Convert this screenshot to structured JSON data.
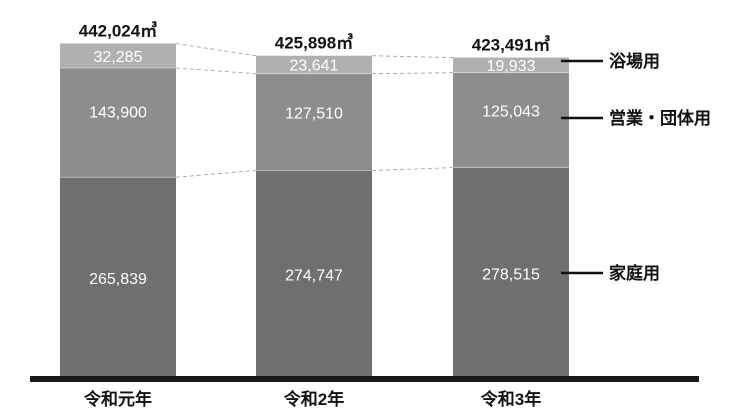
{
  "chart_data": {
    "type": "bar",
    "stacked": true,
    "categories": [
      "令和元年",
      "令和2年",
      "令和3年"
    ],
    "totals": [
      "442,024㎥",
      "425,898㎥",
      "423,491㎥"
    ],
    "series": [
      {
        "name": "家庭用",
        "values": [
          265839,
          274747,
          278515
        ],
        "labels": [
          "265,839",
          "274,747",
          "278,515"
        ],
        "color": "#6f6f72"
      },
      {
        "name": "営業・団体用",
        "values": [
          143900,
          127510,
          125043
        ],
        "labels": [
          "143,900",
          "127,510",
          "125,043"
        ],
        "color": "#8d8d90"
      },
      {
        "name": "浴場用",
        "values": [
          32285,
          23641,
          19933
        ],
        "labels": [
          "32,285",
          "23,641",
          "19,933"
        ],
        "color": "#b0b0b3"
      }
    ],
    "grid": false,
    "legend": "right"
  }
}
